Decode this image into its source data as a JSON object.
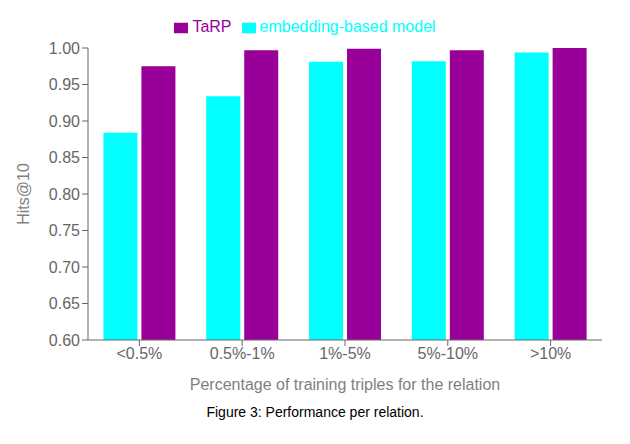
{
  "chart_data": {
    "type": "bar",
    "categories": [
      "<0.5%",
      "0.5%-1%",
      "1%-5%",
      "5%-10%",
      ">10%"
    ],
    "series": [
      {
        "name": "embedding-based model",
        "color": "#00FFFF",
        "values": [
          0.884,
          0.934,
          0.981,
          0.982,
          0.994
        ]
      },
      {
        "name": "TaRP",
        "color": "#990099",
        "values": [
          0.975,
          0.997,
          0.999,
          0.997,
          1.0
        ]
      }
    ],
    "xlabel": "Percentage of training triples for the relation",
    "ylabel": "Hits@10",
    "ylim": [
      0.6,
      1.0
    ],
    "yticks": [
      {
        "value": 0.6,
        "label": "0.60"
      },
      {
        "value": 0.65,
        "label": "0.65"
      },
      {
        "value": 0.7,
        "label": "0.70"
      },
      {
        "value": 0.75,
        "label": "0.75"
      },
      {
        "value": 0.8,
        "label": "0.80"
      },
      {
        "value": 0.85,
        "label": "0.85"
      },
      {
        "value": 0.9,
        "label": "0.90"
      },
      {
        "value": 0.95,
        "label": "0.95"
      },
      {
        "value": 1.0,
        "label": "1.00"
      }
    ],
    "grid": false,
    "legend": "top",
    "annotations": [
      "Figure 3: Performance per relation."
    ]
  }
}
